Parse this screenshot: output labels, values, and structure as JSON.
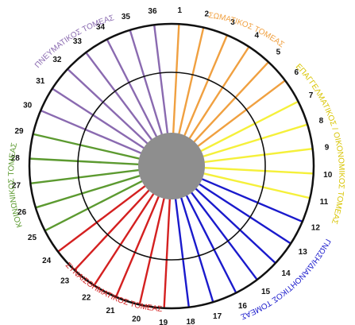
{
  "sectors": [
    {
      "key": "somatikos",
      "label": "ΣΩΜΑΤΙΚΟΣ ΤΟΜΕΑΣ",
      "color": "#f0a040",
      "spokes": [
        1,
        2,
        3,
        4,
        5,
        6
      ]
    },
    {
      "key": "epaggelmatikos",
      "label": "ΕΠΑΓΓΕΛΜΑΤΙΚΟΣ / ΟΙΚΟΝΟΜΙΚΟΣ ΤΟΜΕΑΣ",
      "color": "#f5f03a",
      "spokes": [
        7,
        8,
        9,
        10,
        11
      ]
    },
    {
      "key": "gnosi",
      "label": "ΓΝΩΣΗ/ΔΙΑΝΟΗΤΙΚΟΣ ΤΟΜΕΑΣ",
      "color": "#1a1acc",
      "spokes": [
        12,
        13,
        14,
        15,
        16,
        17,
        18
      ]
    },
    {
      "key": "synaisthimatikos",
      "label": "ΣΥΝΑΙΣΘΗΜΑΤΙΚΟΣ ΤΟΜΕΑΣ",
      "color": "#d42020",
      "spokes": [
        19,
        20,
        21,
        22,
        23,
        24
      ]
    },
    {
      "key": "koinonikos",
      "label": "ΚΟΙΝΩΝΙΚΟΣ ΤΟΜΕΑΣ",
      "color": "#5c9a30",
      "spokes": [
        25,
        26,
        27,
        28,
        29
      ]
    },
    {
      "key": "pneumatikos",
      "label": "ΠΝΕΥΜΑΤΙΚΟΣ ΤΟΜΕΑΣ",
      "color": "#8a6ab0",
      "spokes": [
        30,
        31,
        32,
        33,
        34,
        35,
        36
      ]
    }
  ],
  "center_color": "#8e8e8e",
  "ring_color": "#111111",
  "spoke_count": 36
}
